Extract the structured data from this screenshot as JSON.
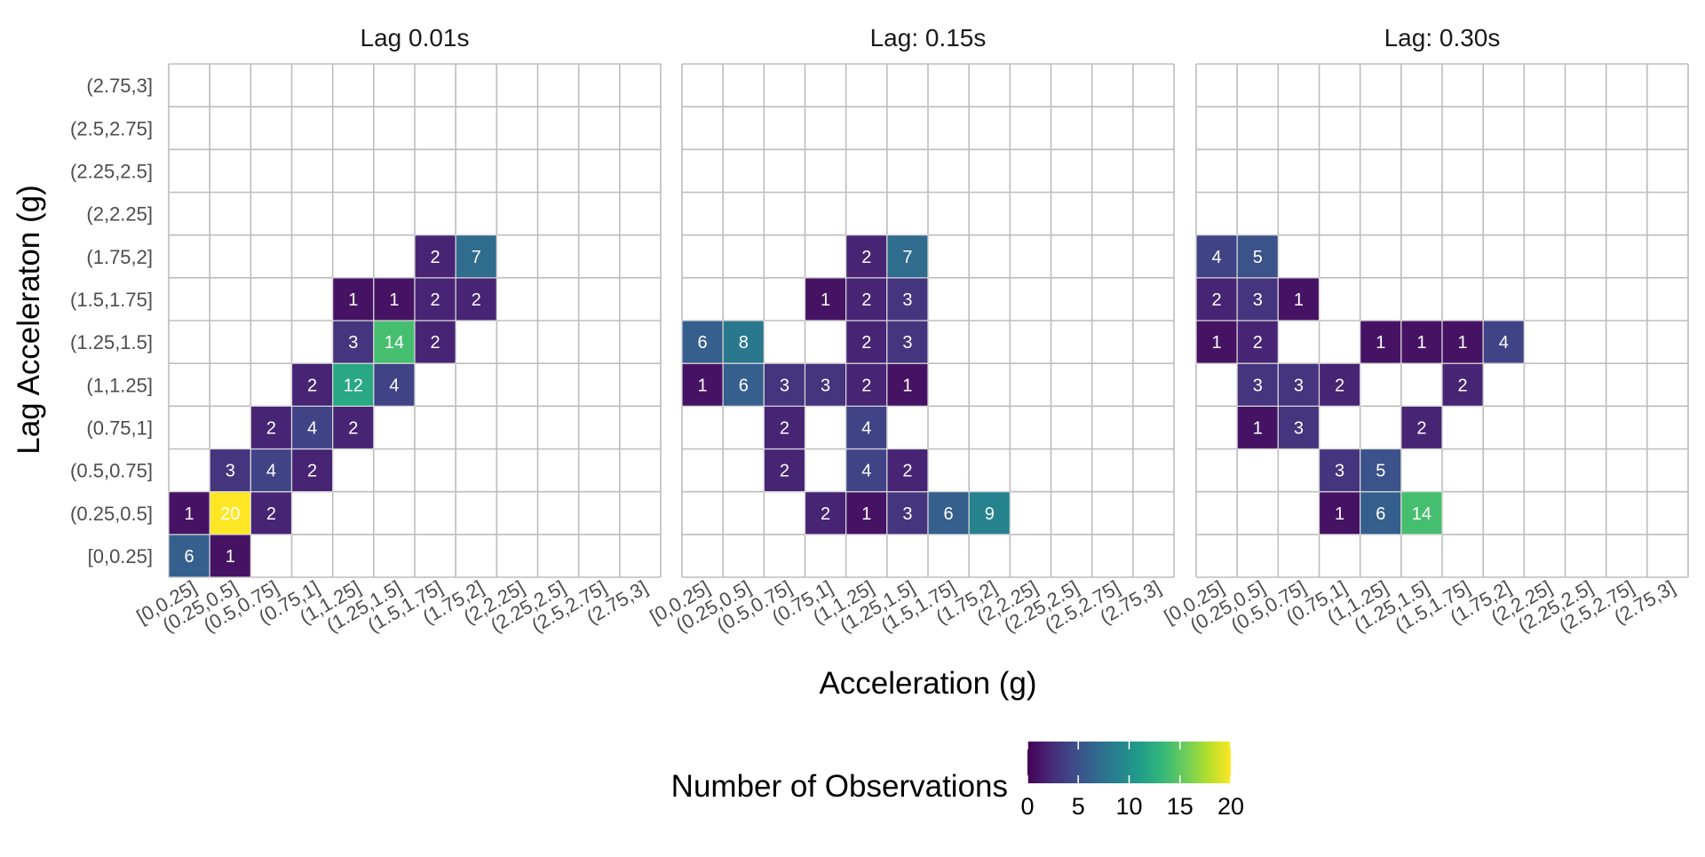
{
  "chart_data": {
    "type": "heatmap",
    "xlabel": "Acceleration (g)",
    "ylabel": "Lag Acceleraton (g)",
    "bins": [
      "[0,0.25]",
      "(0.25,0.5]",
      "(0.5,0.75]",
      "(0.75,1]",
      "(1,1.25]",
      "(1.25,1.5]",
      "(1.5,1.75]",
      "(1.75,2]",
      "(2,2.25]",
      "(2.25,2.5]",
      "(2.5,2.75]",
      "(2.75,3]"
    ],
    "legend": {
      "title": "Number of Observations",
      "position": "bottom",
      "min": 0,
      "max": 20,
      "ticks": [
        0,
        5,
        10,
        15,
        20
      ],
      "palette": "viridis"
    },
    "colors": {
      "viridis_stops": [
        "#440154",
        "#482878",
        "#3E4A89",
        "#31688E",
        "#26828E",
        "#1F9E89",
        "#35B779",
        "#6DCD59",
        "#B4DE2C",
        "#FDE725"
      ],
      "grid": "#bdbdbd",
      "cell_text": "#ffffff"
    },
    "grid": true,
    "panels": [
      {
        "title": "Lag 0.01s",
        "cells": [
          {
            "x": "[0,0.25]",
            "y": "[0,0.25]",
            "value": 6
          },
          {
            "x": "(0.25,0.5]",
            "y": "[0,0.25]",
            "value": 1
          },
          {
            "x": "[0,0.25]",
            "y": "(0.25,0.5]",
            "value": 1
          },
          {
            "x": "(0.25,0.5]",
            "y": "(0.25,0.5]",
            "value": 20
          },
          {
            "x": "(0.5,0.75]",
            "y": "(0.25,0.5]",
            "value": 2
          },
          {
            "x": "(0.25,0.5]",
            "y": "(0.5,0.75]",
            "value": 3
          },
          {
            "x": "(0.5,0.75]",
            "y": "(0.5,0.75]",
            "value": 4
          },
          {
            "x": "(0.75,1]",
            "y": "(0.5,0.75]",
            "value": 2
          },
          {
            "x": "(0.5,0.75]",
            "y": "(0.75,1]",
            "value": 2
          },
          {
            "x": "(0.75,1]",
            "y": "(0.75,1]",
            "value": 4
          },
          {
            "x": "(1,1.25]",
            "y": "(0.75,1]",
            "value": 2
          },
          {
            "x": "(0.75,1]",
            "y": "(1,1.25]",
            "value": 2
          },
          {
            "x": "(1,1.25]",
            "y": "(1,1.25]",
            "value": 12
          },
          {
            "x": "(1.25,1.5]",
            "y": "(1,1.25]",
            "value": 4
          },
          {
            "x": "(1,1.25]",
            "y": "(1.25,1.5]",
            "value": 3
          },
          {
            "x": "(1.25,1.5]",
            "y": "(1.25,1.5]",
            "value": 14
          },
          {
            "x": "(1.5,1.75]",
            "y": "(1.25,1.5]",
            "value": 2
          },
          {
            "x": "(1,1.25]",
            "y": "(1.5,1.75]",
            "value": 1
          },
          {
            "x": "(1.25,1.5]",
            "y": "(1.5,1.75]",
            "value": 1
          },
          {
            "x": "(1.5,1.75]",
            "y": "(1.5,1.75]",
            "value": 2
          },
          {
            "x": "(1.75,2]",
            "y": "(1.5,1.75]",
            "value": 2
          },
          {
            "x": "(1.5,1.75]",
            "y": "(1.75,2]",
            "value": 2
          },
          {
            "x": "(1.75,2]",
            "y": "(1.75,2]",
            "value": 7
          }
        ]
      },
      {
        "title": "Lag: 0.15s",
        "cells": [
          {
            "x": "(0.75,1]",
            "y": "(0.25,0.5]",
            "value": 2
          },
          {
            "x": "(1,1.25]",
            "y": "(0.25,0.5]",
            "value": 1
          },
          {
            "x": "(1.25,1.5]",
            "y": "(0.25,0.5]",
            "value": 3
          },
          {
            "x": "(1.5,1.75]",
            "y": "(0.25,0.5]",
            "value": 6
          },
          {
            "x": "(1.75,2]",
            "y": "(0.25,0.5]",
            "value": 9
          },
          {
            "x": "(0.5,0.75]",
            "y": "(0.5,0.75]",
            "value": 2
          },
          {
            "x": "(1,1.25]",
            "y": "(0.5,0.75]",
            "value": 4
          },
          {
            "x": "(1.25,1.5]",
            "y": "(0.5,0.75]",
            "value": 2
          },
          {
            "x": "(0.5,0.75]",
            "y": "(0.75,1]",
            "value": 2
          },
          {
            "x": "(1,1.25]",
            "y": "(0.75,1]",
            "value": 4
          },
          {
            "x": "[0,0.25]",
            "y": "(1,1.25]",
            "value": 1
          },
          {
            "x": "(0.25,0.5]",
            "y": "(1,1.25]",
            "value": 6
          },
          {
            "x": "(0.5,0.75]",
            "y": "(1,1.25]",
            "value": 3
          },
          {
            "x": "(0.75,1]",
            "y": "(1,1.25]",
            "value": 3
          },
          {
            "x": "(1,1.25]",
            "y": "(1,1.25]",
            "value": 2
          },
          {
            "x": "(1.25,1.5]",
            "y": "(1,1.25]",
            "value": 1
          },
          {
            "x": "[0,0.25]",
            "y": "(1.25,1.5]",
            "value": 6
          },
          {
            "x": "(0.25,0.5]",
            "y": "(1.25,1.5]",
            "value": 8
          },
          {
            "x": "(1,1.25]",
            "y": "(1.25,1.5]",
            "value": 2
          },
          {
            "x": "(1.25,1.5]",
            "y": "(1.25,1.5]",
            "value": 3
          },
          {
            "x": "(0.75,1]",
            "y": "(1.5,1.75]",
            "value": 1
          },
          {
            "x": "(1,1.25]",
            "y": "(1.5,1.75]",
            "value": 2
          },
          {
            "x": "(1.25,1.5]",
            "y": "(1.5,1.75]",
            "value": 3
          },
          {
            "x": "(1,1.25]",
            "y": "(1.75,2]",
            "value": 2
          },
          {
            "x": "(1.25,1.5]",
            "y": "(1.75,2]",
            "value": 7
          }
        ]
      },
      {
        "title": "Lag: 0.30s",
        "cells": [
          {
            "x": "(0.75,1]",
            "y": "(0.25,0.5]",
            "value": 1
          },
          {
            "x": "(1,1.25]",
            "y": "(0.25,0.5]",
            "value": 6
          },
          {
            "x": "(1.25,1.5]",
            "y": "(0.25,0.5]",
            "value": 14
          },
          {
            "x": "(0.75,1]",
            "y": "(0.5,0.75]",
            "value": 3
          },
          {
            "x": "(1,1.25]",
            "y": "(0.5,0.75]",
            "value": 5
          },
          {
            "x": "(0.25,0.5]",
            "y": "(0.75,1]",
            "value": 1
          },
          {
            "x": "(0.5,0.75]",
            "y": "(0.75,1]",
            "value": 3
          },
          {
            "x": "(1.25,1.5]",
            "y": "(0.75,1]",
            "value": 2
          },
          {
            "x": "(0.25,0.5]",
            "y": "(1,1.25]",
            "value": 3
          },
          {
            "x": "(0.5,0.75]",
            "y": "(1,1.25]",
            "value": 3
          },
          {
            "x": "(0.75,1]",
            "y": "(1,1.25]",
            "value": 2
          },
          {
            "x": "(1.5,1.75]",
            "y": "(1,1.25]",
            "value": 2
          },
          {
            "x": "[0,0.25]",
            "y": "(1.25,1.5]",
            "value": 1
          },
          {
            "x": "(0.25,0.5]",
            "y": "(1.25,1.5]",
            "value": 2
          },
          {
            "x": "(1,1.25]",
            "y": "(1.25,1.5]",
            "value": 1
          },
          {
            "x": "(1.25,1.5]",
            "y": "(1.25,1.5]",
            "value": 1
          },
          {
            "x": "(1.5,1.75]",
            "y": "(1.25,1.5]",
            "value": 1
          },
          {
            "x": "(1.75,2]",
            "y": "(1.25,1.5]",
            "value": 4
          },
          {
            "x": "[0,0.25]",
            "y": "(1.5,1.75]",
            "value": 2
          },
          {
            "x": "(0.25,0.5]",
            "y": "(1.5,1.75]",
            "value": 3
          },
          {
            "x": "(0.5,0.75]",
            "y": "(1.5,1.75]",
            "value": 1
          },
          {
            "x": "[0,0.25]",
            "y": "(1.75,2]",
            "value": 4
          },
          {
            "x": "(0.25,0.5]",
            "y": "(1.75,2]",
            "value": 5
          }
        ]
      }
    ]
  }
}
